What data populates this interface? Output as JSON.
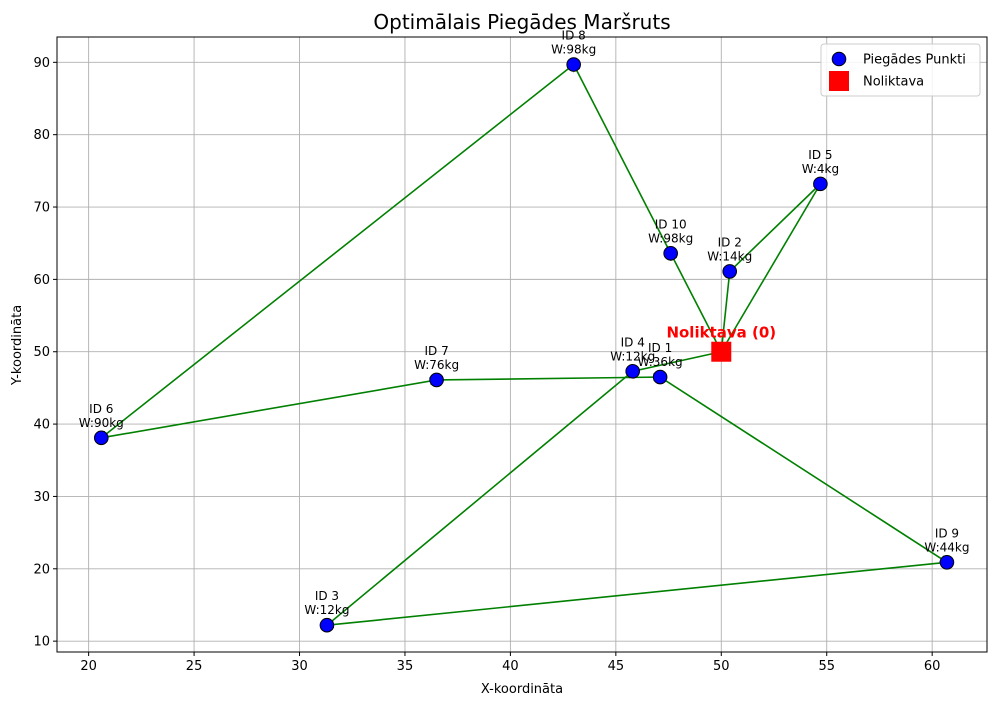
{
  "chart_data": {
    "type": "scatter",
    "title": "Optimālais Piegādes Maršruts",
    "xlabel": "X-koordināta",
    "ylabel": "Y-koordināta",
    "xlim": [
      18.5,
      62.6
    ],
    "ylim": [
      8.5,
      93.5
    ],
    "xticks": [
      20,
      25,
      30,
      35,
      40,
      45,
      50,
      55,
      60
    ],
    "yticks": [
      10,
      20,
      30,
      40,
      50,
      60,
      70,
      80,
      90
    ],
    "grid": true,
    "legend_position": "top-right",
    "legend": [
      {
        "label": "Piegādes Punkti",
        "marker": "circle",
        "color": "#0000ff"
      },
      {
        "label": "Noliktava",
        "marker": "square",
        "color": "#ff0000"
      }
    ],
    "depot": {
      "x": 50,
      "y": 50,
      "label": "Noliktava (0)",
      "color": "#ff0000"
    },
    "points": [
      {
        "id": 1,
        "x": 47.1,
        "y": 46.5,
        "id_label": "ID 1",
        "w_label": "W:36kg"
      },
      {
        "id": 2,
        "x": 50.4,
        "y": 61.1,
        "id_label": "ID 2",
        "w_label": "W:14kg"
      },
      {
        "id": 3,
        "x": 31.3,
        "y": 12.2,
        "id_label": "ID 3",
        "w_label": "W:12kg"
      },
      {
        "id": 4,
        "x": 45.8,
        "y": 47.3,
        "id_label": "ID 4",
        "w_label": "W:12kg"
      },
      {
        "id": 5,
        "x": 54.7,
        "y": 73.2,
        "id_label": "ID 5",
        "w_label": "W:4kg"
      },
      {
        "id": 6,
        "x": 20.6,
        "y": 38.1,
        "id_label": "ID 6",
        "w_label": "W:90kg"
      },
      {
        "id": 7,
        "x": 36.5,
        "y": 46.1,
        "id_label": "ID 7",
        "w_label": "W:76kg"
      },
      {
        "id": 8,
        "x": 43.0,
        "y": 89.7,
        "id_label": "ID 8",
        "w_label": "W:98kg"
      },
      {
        "id": 9,
        "x": 60.7,
        "y": 20.9,
        "id_label": "ID 9",
        "w_label": "W:44kg"
      },
      {
        "id": 10,
        "x": 47.6,
        "y": 63.6,
        "id_label": "ID 10",
        "w_label": "W:98kg"
      }
    ],
    "route": [
      0,
      2,
      5,
      0,
      10,
      8,
      6,
      7,
      1,
      9,
      3,
      4,
      0
    ],
    "point_color": "#0000ff",
    "route_color": "#008000"
  }
}
